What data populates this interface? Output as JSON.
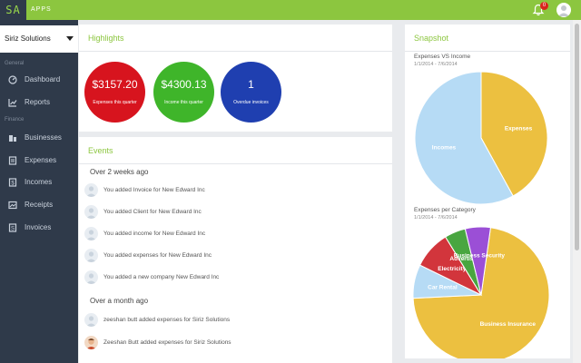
{
  "header": {
    "logo": "SA",
    "apps_label": "APPS",
    "notification_count": "0"
  },
  "sidebar": {
    "company": "Siriz Solutions",
    "section_general": "General",
    "section_finance": "Finance",
    "items": [
      {
        "label": "Dashboard",
        "icon": "dashboard-icon"
      },
      {
        "label": "Reports",
        "icon": "reports-icon"
      },
      {
        "label": "Businesses",
        "icon": "businesses-icon"
      },
      {
        "label": "Expenses",
        "icon": "expenses-icon"
      },
      {
        "label": "Incomes",
        "icon": "incomes-icon"
      },
      {
        "label": "Receipts",
        "icon": "receipts-icon"
      },
      {
        "label": "Invoices",
        "icon": "invoices-icon"
      }
    ]
  },
  "highlights": {
    "title": "Highlights",
    "items": [
      {
        "value": "$3157.20",
        "label": "Expenses this quarter",
        "color": "#d7141e"
      },
      {
        "value": "$4300.13",
        "label": "Income this quarter",
        "color": "#3fb52a"
      },
      {
        "value": "1",
        "label": "Overdue invoices",
        "color": "#1f3fb0"
      }
    ]
  },
  "events": {
    "title": "Events",
    "groups": [
      {
        "label": "Over 2 weeks ago",
        "items": [
          "You added Invoice for New Edward Inc",
          "You added Client for New Edward Inc",
          "You added income for New Edward Inc",
          "You added expenses for New Edward Inc",
          "You added a new company New Edward Inc"
        ]
      },
      {
        "label": "Over a month ago",
        "items": [
          "zeeshan butt added expenses for Siriz Solutions",
          "Zeeshan Butt added expenses for Siriz Solutions"
        ]
      }
    ]
  },
  "snapshot": {
    "title": "Snapshot",
    "chart1": {
      "title": "Expenses VS Income",
      "date": "1/1/2014 - 7/6/2014"
    },
    "chart2": {
      "title": "Expenses per Category",
      "date": "1/1/2014 - 7/6/2014"
    }
  },
  "chart_data": [
    {
      "type": "pie",
      "title": "Expenses VS Income",
      "categories": [
        "Expenses",
        "Incomes"
      ],
      "values": [
        42,
        58
      ],
      "colors": [
        "#ecc040",
        "#b6dbf5"
      ]
    },
    {
      "type": "pie",
      "title": "Expenses per Category",
      "categories": [
        "Business Insurance",
        "Car Rental",
        "Electricity",
        "Advertising",
        "Business Security"
      ],
      "values": [
        72,
        8,
        9,
        5,
        6
      ],
      "colors": [
        "#ecc040",
        "#b6dbf5",
        "#d2353c",
        "#49a640",
        "#9b4fd6"
      ]
    }
  ]
}
